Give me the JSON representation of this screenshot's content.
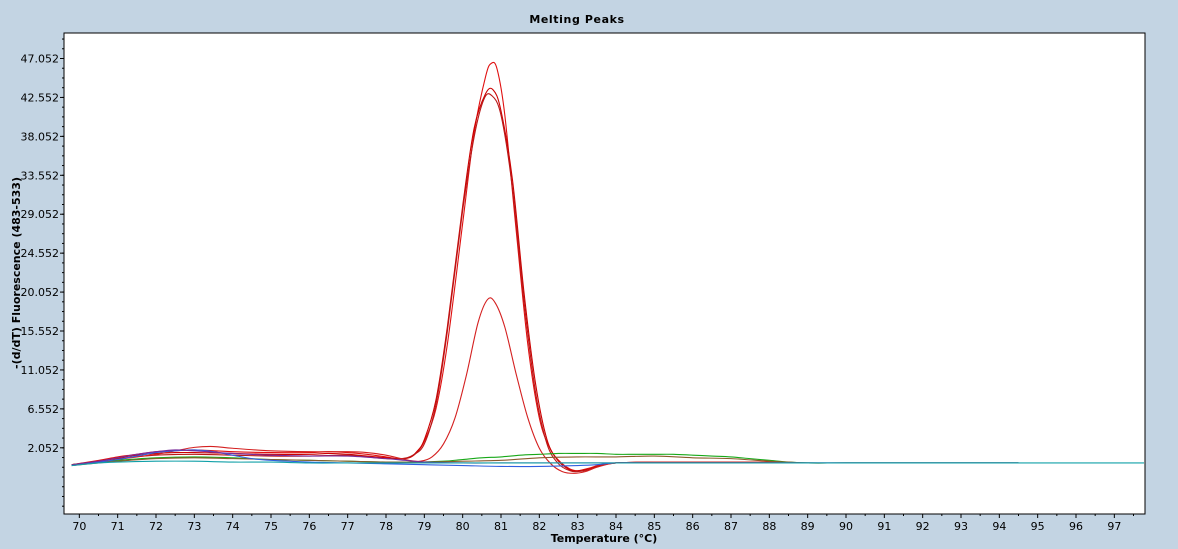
{
  "chart_data": {
    "type": "line",
    "title": "Melting Peaks",
    "xlabel": "Temperature (°C)",
    "ylabel": "-(d/dT) Fluorescence (483-533)",
    "xlim": [
      69.6,
      97.8
    ],
    "ylim": [
      -5.6,
      50.0
    ],
    "x_ticks": [
      70,
      71,
      72,
      73,
      74,
      75,
      76,
      77,
      78,
      79,
      80,
      81,
      82,
      83,
      84,
      85,
      86,
      87,
      88,
      89,
      90,
      91,
      92,
      93,
      94,
      95,
      96,
      97
    ],
    "x_tick_labels": [
      "70",
      "71",
      "72",
      "73",
      "74",
      "75",
      "76",
      "77",
      "78",
      "79",
      "80",
      "81",
      "82",
      "83",
      "84",
      "85",
      "86",
      "87",
      "88",
      "89",
      "90",
      "91",
      "92",
      "93",
      "94",
      "95",
      "96",
      "97"
    ],
    "y_ticks": [
      2.052,
      6.552,
      11.052,
      15.552,
      20.052,
      24.552,
      29.052,
      33.552,
      38.052,
      42.552,
      47.052
    ],
    "y_tick_labels": [
      "2.052",
      "6.552",
      "11.052",
      "15.552",
      "20.052",
      "24.552",
      "29.052",
      "33.552",
      "38.052",
      "42.552",
      "47.052"
    ],
    "grid": false,
    "legend": "none",
    "series": [
      {
        "color": "#e01010",
        "x": [
          69.8,
          70.5,
          71.0,
          71.5,
          72.0,
          72.5,
          73.0,
          74.0,
          75.0,
          76.0,
          76.5,
          77.0,
          77.5,
          78.0,
          78.3,
          78.6,
          78.8,
          79.0,
          79.3,
          79.6,
          80.0,
          80.3,
          80.6,
          80.75,
          80.9,
          81.1,
          81.4,
          81.7,
          82.0,
          82.3,
          82.6,
          82.8,
          83.0,
          83.3,
          83.6,
          84.0,
          85.0,
          86.0,
          87.0,
          88.0,
          88.5
        ],
        "y": [
          0.1,
          0.6,
          1.0,
          1.3,
          1.6,
          1.7,
          1.8,
          1.6,
          1.5,
          1.5,
          1.6,
          1.5,
          1.3,
          1.0,
          0.8,
          0.9,
          1.5,
          2.8,
          6.5,
          14.0,
          28.0,
          38.5,
          45.0,
          46.5,
          45.8,
          40.5,
          27.0,
          14.0,
          5.5,
          1.8,
          0.2,
          -0.4,
          -0.6,
          -0.3,
          0.1,
          0.3,
          0.4,
          0.4,
          0.4,
          0.4,
          0.4
        ]
      },
      {
        "color": "#cc0000",
        "x": [
          69.8,
          70.5,
          71.0,
          71.5,
          72.0,
          72.5,
          73.0,
          74.0,
          75.0,
          76.0,
          76.5,
          77.0,
          77.5,
          78.0,
          78.3,
          78.6,
          78.8,
          79.0,
          79.3,
          79.6,
          80.0,
          80.3,
          80.6,
          80.8,
          81.0,
          81.3,
          81.6,
          81.9,
          82.2,
          82.5,
          82.8,
          83.0,
          83.3,
          83.6,
          84.0,
          85.0,
          86.0,
          87.0,
          88.0,
          88.5
        ],
        "y": [
          0.1,
          0.5,
          0.9,
          1.2,
          1.4,
          1.5,
          1.5,
          1.4,
          1.3,
          1.3,
          1.4,
          1.3,
          1.1,
          0.9,
          0.8,
          0.9,
          1.6,
          3.0,
          7.5,
          16.0,
          30.0,
          39.0,
          43.0,
          43.4,
          41.0,
          33.0,
          20.0,
          9.5,
          3.0,
          0.5,
          -0.5,
          -0.6,
          -0.4,
          0.0,
          0.3,
          0.4,
          0.4,
          0.4,
          0.4,
          0.4
        ]
      },
      {
        "color": "#b81818",
        "x": [
          69.8,
          70.5,
          71.0,
          72.0,
          73.0,
          74.0,
          75.0,
          76.0,
          77.0,
          77.5,
          78.0,
          78.4,
          78.7,
          79.0,
          79.3,
          79.6,
          80.0,
          80.3,
          80.55,
          80.75,
          81.0,
          81.3,
          81.6,
          81.9,
          82.2,
          82.5,
          82.8,
          83.0,
          83.3,
          83.6,
          84.0,
          85.0,
          86.0,
          87.0,
          88.0,
          88.5
        ],
        "y": [
          0.1,
          0.5,
          0.8,
          1.2,
          1.3,
          1.2,
          1.1,
          1.1,
          1.2,
          1.0,
          0.8,
          0.8,
          1.2,
          2.5,
          7.0,
          15.5,
          29.5,
          38.0,
          42.3,
          42.8,
          40.5,
          32.0,
          19.0,
          8.5,
          2.5,
          0.2,
          -0.6,
          -0.7,
          -0.5,
          0.0,
          0.3,
          0.4,
          0.4,
          0.4,
          0.4,
          0.4
        ]
      },
      {
        "color": "#d42020",
        "x": [
          69.8,
          70.5,
          71.0,
          71.5,
          72.0,
          72.5,
          73.0,
          73.5,
          74.0,
          75.0,
          76.0,
          77.0,
          77.5,
          78.0,
          78.3,
          78.6,
          78.9,
          79.2,
          79.5,
          79.8,
          80.1,
          80.4,
          80.65,
          80.85,
          81.1,
          81.4,
          81.7,
          82.0,
          82.3,
          82.6,
          82.9,
          83.2,
          83.5,
          84.0,
          85.0,
          86.0,
          87.0,
          88.0,
          88.5
        ],
        "y": [
          0.1,
          0.4,
          0.7,
          1.0,
          1.3,
          1.7,
          2.1,
          2.2,
          2.0,
          1.7,
          1.6,
          1.6,
          1.5,
          1.2,
          0.9,
          0.6,
          0.5,
          1.0,
          2.5,
          5.5,
          10.5,
          16.5,
          19.2,
          18.8,
          16.0,
          10.5,
          5.5,
          2.0,
          0.2,
          -0.7,
          -0.9,
          -0.7,
          -0.2,
          0.3,
          0.4,
          0.4,
          0.4,
          0.4,
          0.4
        ]
      },
      {
        "color": "#18a818",
        "x": [
          69.8,
          70.5,
          71.0,
          72.0,
          73.0,
          74.0,
          75.0,
          76.0,
          77.0,
          78.0,
          78.8,
          79.5,
          80.0,
          80.5,
          81.0,
          81.5,
          82.0,
          82.5,
          83.0,
          83.5,
          84.0,
          84.5,
          85.0,
          85.5,
          86.0,
          86.5,
          87.0,
          87.5,
          88.0,
          88.5,
          89.0,
          90.0,
          92.0,
          94.0,
          94.5
        ],
        "y": [
          0.1,
          0.4,
          0.6,
          0.9,
          1.0,
          0.9,
          0.7,
          0.6,
          0.5,
          0.4,
          0.4,
          0.5,
          0.7,
          0.9,
          1.0,
          1.2,
          1.3,
          1.4,
          1.4,
          1.4,
          1.3,
          1.3,
          1.3,
          1.3,
          1.2,
          1.1,
          1.0,
          0.8,
          0.6,
          0.4,
          0.3,
          0.3,
          0.3,
          0.3,
          0.3
        ]
      },
      {
        "color": "#8b5a2b",
        "x": [
          69.8,
          70.5,
          71.0,
          72.0,
          73.0,
          74.0,
          75.0,
          76.0,
          77.0,
          78.0,
          79.0,
          80.0,
          81.0,
          82.0,
          83.0,
          84.0,
          85.0,
          86.0,
          87.0,
          88.0,
          88.5,
          89.0,
          90.0,
          92.0,
          94.0,
          94.5
        ],
        "y": [
          0.0,
          0.3,
          0.5,
          0.8,
          0.9,
          0.8,
          0.7,
          0.6,
          0.5,
          0.4,
          0.4,
          0.5,
          0.6,
          0.9,
          1.0,
          1.0,
          1.1,
          0.9,
          0.8,
          0.5,
          0.4,
          0.3,
          0.3,
          0.3,
          0.3,
          0.3
        ]
      },
      {
        "color": "#3060e0",
        "x": [
          69.8,
          70.5,
          71.0,
          71.5,
          72.0,
          72.5,
          73.0,
          73.5,
          74.0,
          74.5,
          75.0,
          76.0,
          77.0,
          78.0,
          79.0,
          80.0,
          81.0,
          82.0,
          83.0,
          83.5,
          84.0,
          85.0,
          86.0,
          88.0,
          90.0,
          92.0,
          94.0,
          94.5
        ],
        "y": [
          0.0,
          0.4,
          0.7,
          1.1,
          1.5,
          1.7,
          1.8,
          1.6,
          1.2,
          0.8,
          0.6,
          0.4,
          0.3,
          0.2,
          0.1,
          0.0,
          -0.1,
          -0.1,
          0.0,
          0.1,
          0.3,
          0.3,
          0.3,
          0.3,
          0.3,
          0.3,
          0.3,
          0.3
        ]
      },
      {
        "color": "#7a2a9a",
        "x": [
          69.8,
          70.5,
          71.0,
          71.5,
          72.0,
          72.5,
          73.0,
          74.0,
          75.0,
          76.0,
          77.0,
          78.0,
          78.5,
          79.0,
          80.0,
          81.0,
          82.0,
          83.0,
          84.0,
          85.0,
          86.0,
          88.0,
          90.0,
          92.0,
          94.0,
          94.5
        ],
        "y": [
          0.1,
          0.5,
          0.9,
          1.3,
          1.6,
          1.8,
          1.7,
          1.4,
          1.2,
          1.1,
          1.1,
          0.8,
          0.6,
          0.4,
          0.3,
          0.3,
          0.3,
          0.3,
          0.3,
          0.3,
          0.3,
          0.3,
          0.3,
          0.3,
          0.3,
          0.3
        ]
      },
      {
        "color": "#10a0a8",
        "x": [
          69.8,
          70.5,
          71.0,
          72.0,
          73.0,
          74.0,
          75.0,
          76.0,
          77.0,
          78.0,
          80.0,
          82.0,
          84.0,
          86.0,
          88.0,
          90.0,
          92.0,
          94.0,
          96.0,
          97.8
        ],
        "y": [
          0.0,
          0.3,
          0.4,
          0.5,
          0.5,
          0.4,
          0.4,
          0.3,
          0.3,
          0.3,
          0.3,
          0.3,
          0.3,
          0.3,
          0.3,
          0.3,
          0.3,
          0.3,
          0.3,
          0.3
        ]
      }
    ]
  }
}
